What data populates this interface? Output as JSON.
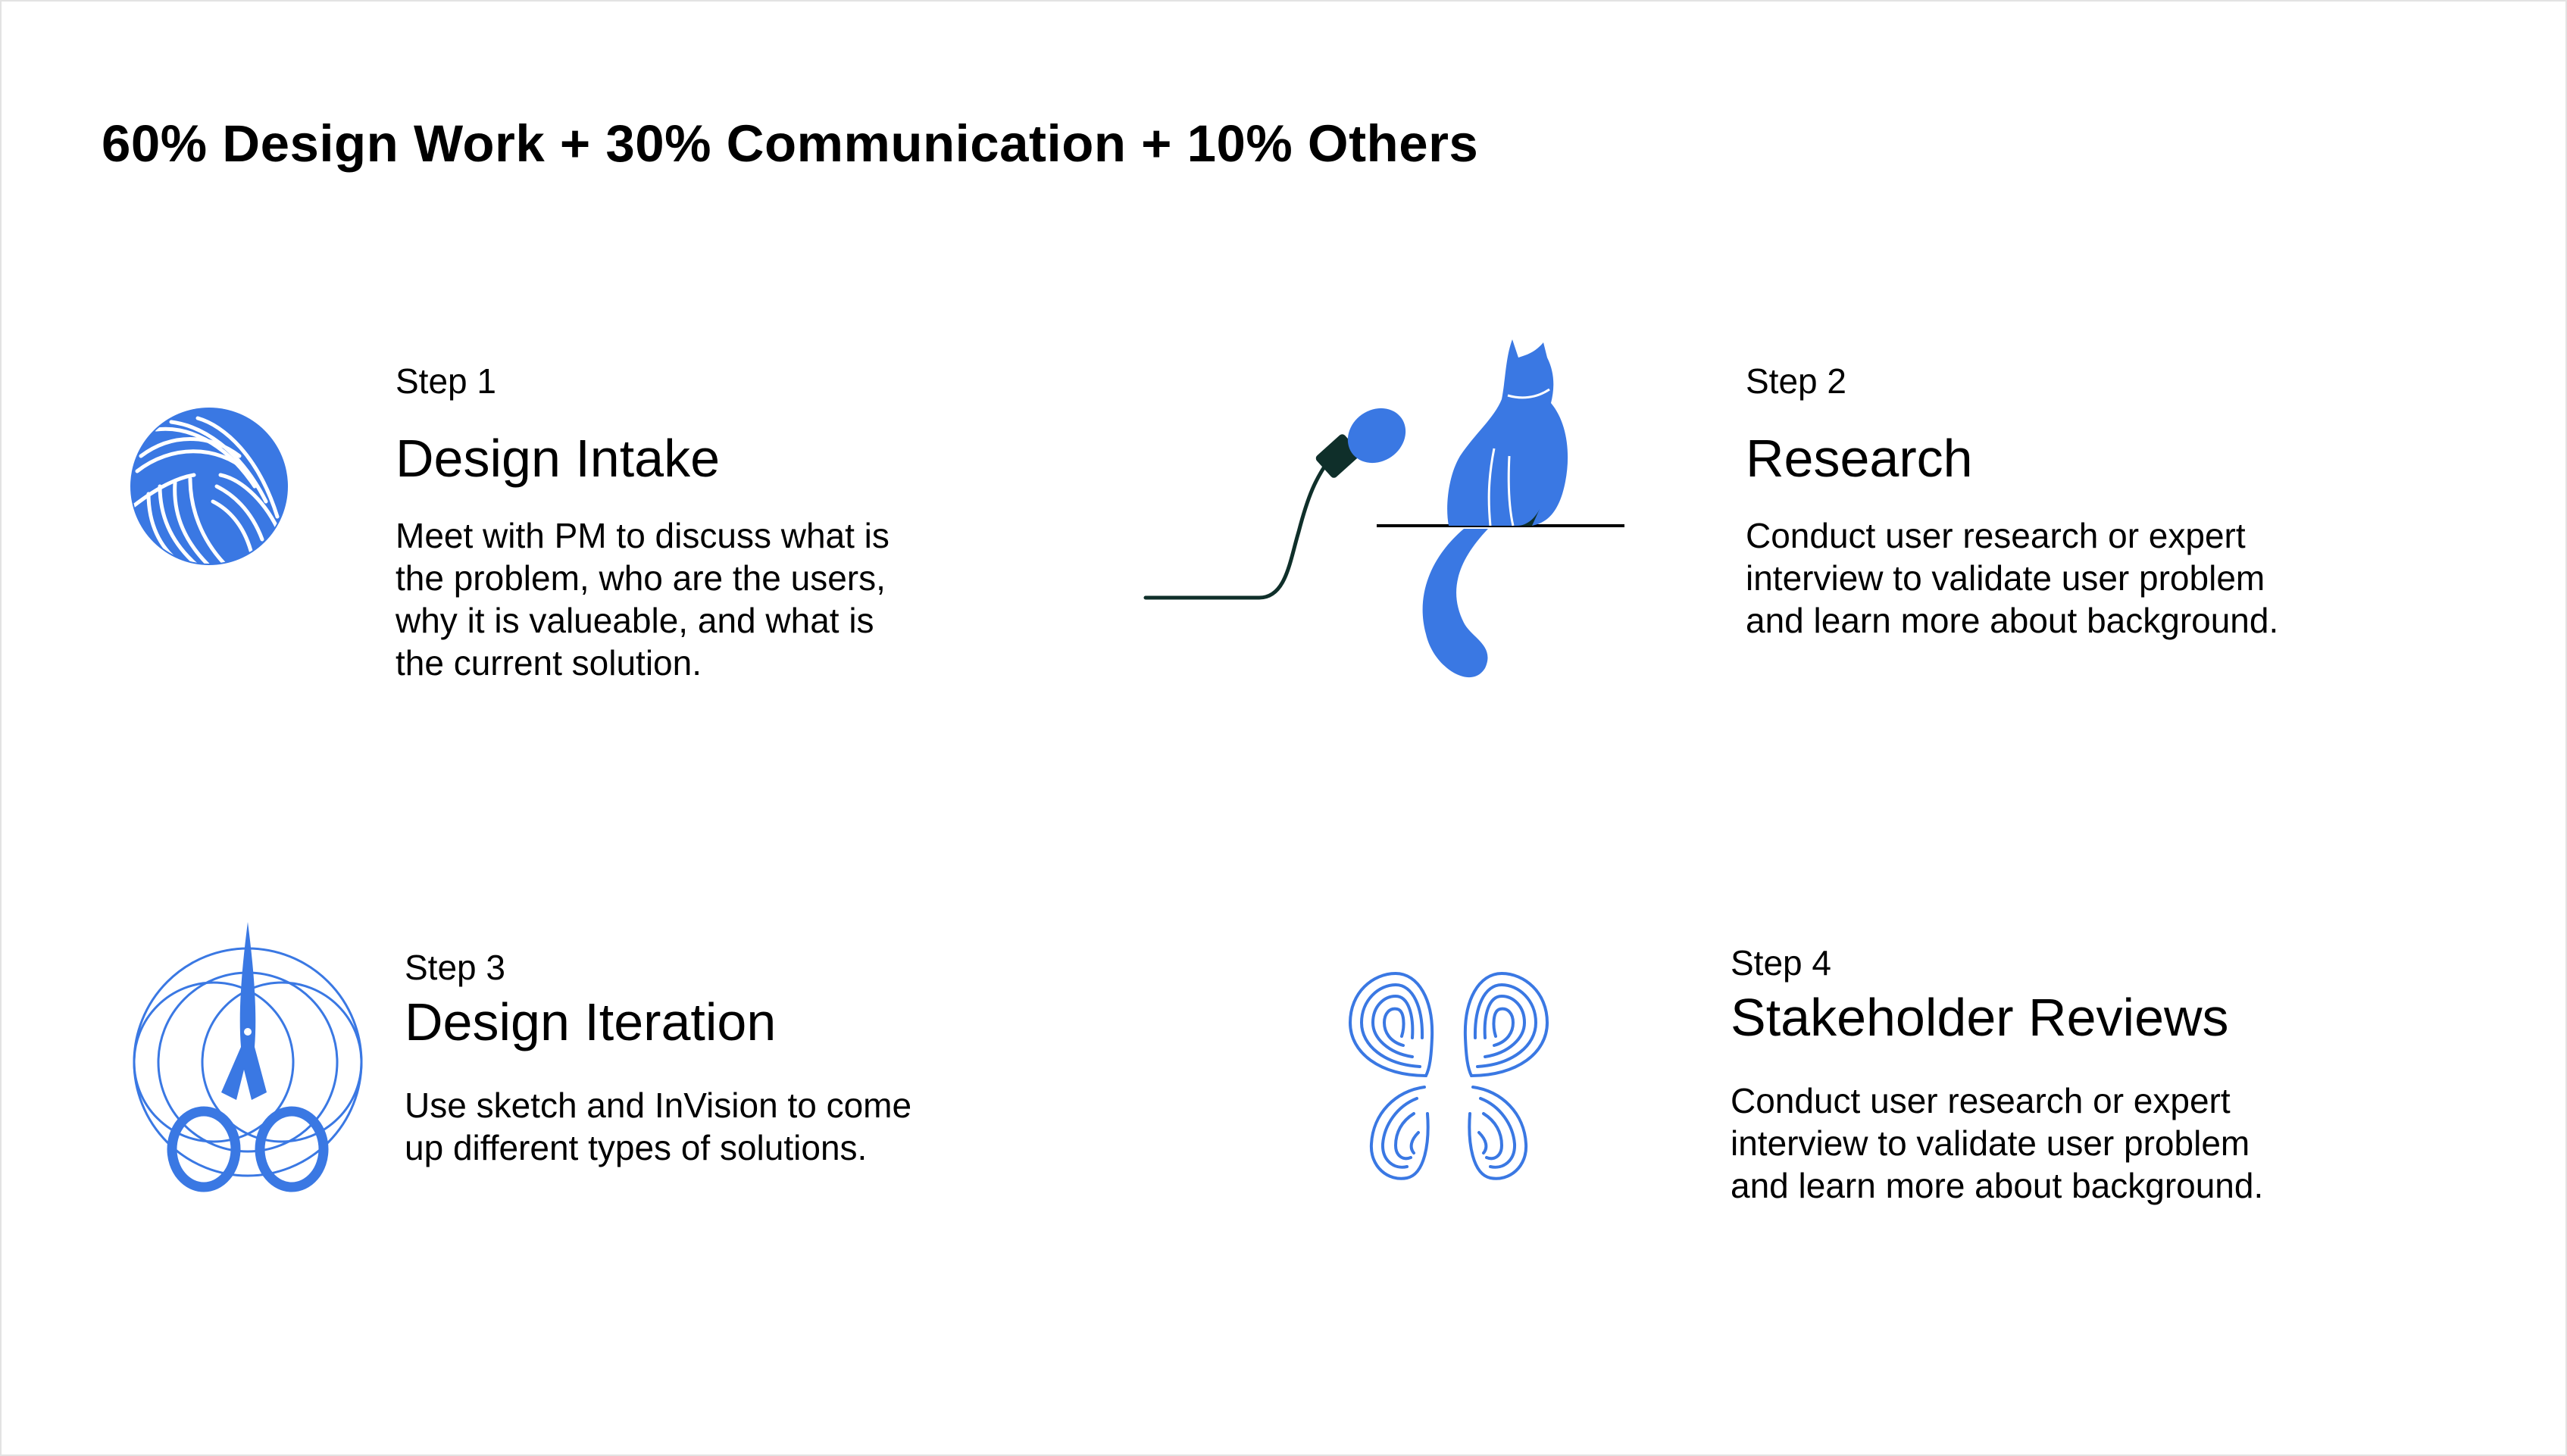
{
  "heading": "60% Design Work + 30% Communication + 10% Others",
  "colors": {
    "accent": "#3a78e3",
    "dark": "#0f2f2a",
    "text": "#000000"
  },
  "steps": [
    {
      "label": "Step 1",
      "title": "Design Intake",
      "lines": [
        "Meet with PM to discuss what is",
        "the problem, who are the users,",
        "why it is valueable, and what is",
        "the current solution."
      ],
      "icon": "yarn-ball-icon"
    },
    {
      "label": "Step 2",
      "title": "Research",
      "lines": [
        "Conduct user research or expert",
        "interview to validate user problem",
        "and learn more about background."
      ],
      "icon": "cat-microphone-icon"
    },
    {
      "label": "Step 3",
      "title": "Design Iteration",
      "lines": [
        "Use sketch and InVision to come",
        "up different types of solutions."
      ],
      "icon": "scissors-icon"
    },
    {
      "label": "Step 4",
      "title": "Stakeholder Reviews",
      "lines": [
        "Conduct user research or expert",
        "interview to validate user problem",
        "and learn more about background."
      ],
      "icon": "fingerprint-butterfly-icon"
    }
  ]
}
